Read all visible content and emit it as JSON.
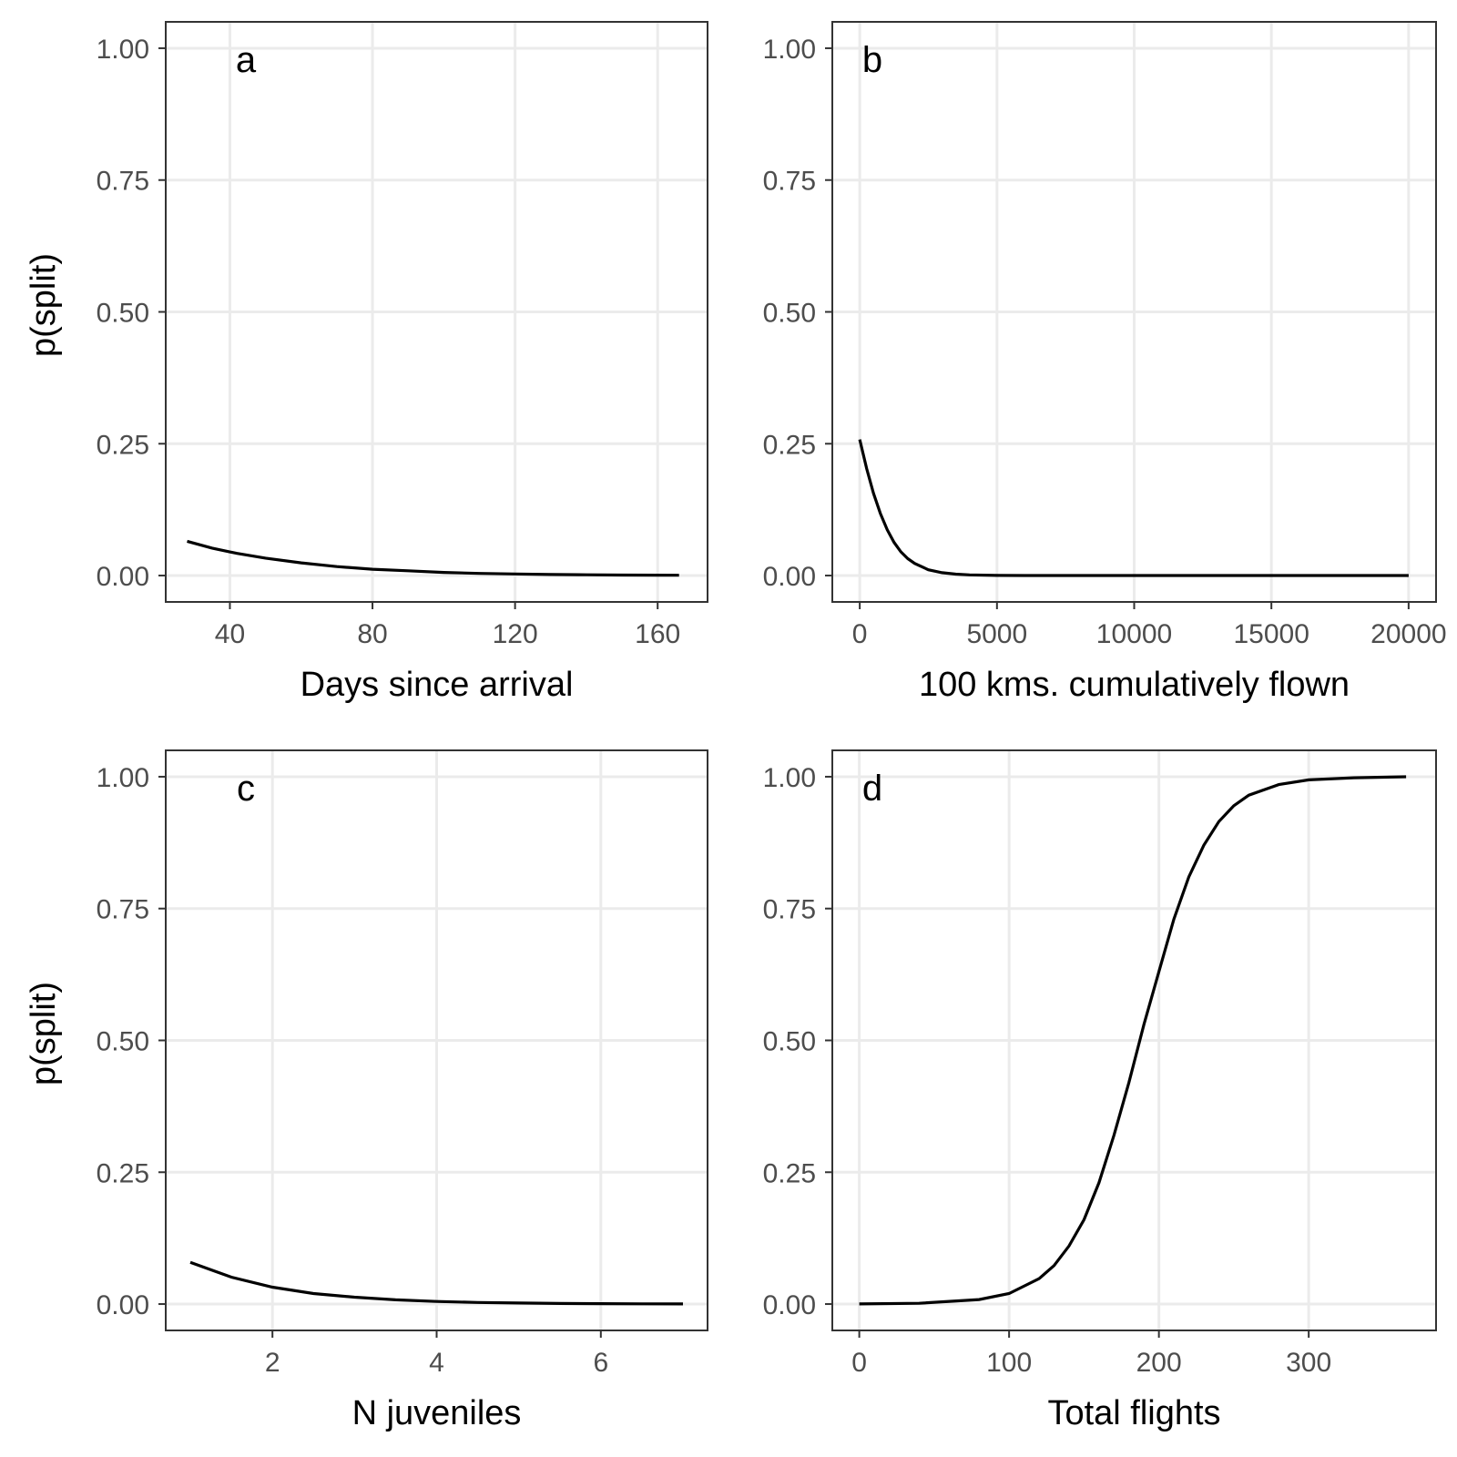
{
  "figure": {
    "ylabel_top": "p(split)",
    "ylabel_bottom": "p(split)"
  },
  "chart_data": [
    {
      "type": "line",
      "panel_label": "a",
      "xlabel": "Days since arrival",
      "ylabel": "p(split)",
      "xlim": [
        22,
        174
      ],
      "ylim": [
        -0.05,
        1.05
      ],
      "xticks": [
        40,
        80,
        120,
        160
      ],
      "xtick_labels": [
        "40",
        "80",
        "120",
        "160"
      ],
      "yticks": [
        0,
        0.25,
        0.5,
        0.75,
        1
      ],
      "ytick_labels": [
        "0.00",
        "0.25",
        "0.50",
        "0.75",
        "1.00"
      ],
      "grid": true,
      "series": [
        {
          "x": [
            28,
            35,
            42,
            50,
            60,
            70,
            80,
            90,
            100,
            110,
            120,
            130,
            140,
            150,
            160,
            166
          ],
          "y": [
            0.065,
            0.052,
            0.042,
            0.033,
            0.024,
            0.017,
            0.012,
            0.009,
            0.006,
            0.004,
            0.003,
            0.002,
            0.0015,
            0.001,
            0.0007,
            0.0006
          ]
        }
      ]
    },
    {
      "type": "line",
      "panel_label": "b",
      "xlabel": "100 kms. cumulatively flown",
      "ylabel": "p(split)",
      "xlim": [
        -1000,
        21000
      ],
      "ylim": [
        -0.05,
        1.05
      ],
      "xticks": [
        0,
        5000,
        10000,
        15000,
        20000
      ],
      "xtick_labels": [
        "0",
        "5000",
        "10000",
        "15000",
        "20000"
      ],
      "yticks": [
        0,
        0.25,
        0.5,
        0.75,
        1
      ],
      "ytick_labels": [
        "0.00",
        "0.25",
        "0.50",
        "0.75",
        "1.00"
      ],
      "grid": true,
      "series": [
        {
          "x": [
            0,
            250,
            500,
            750,
            1000,
            1250,
            1500,
            1750,
            2000,
            2500,
            3000,
            3500,
            4000,
            5000,
            6000,
            8000,
            10000,
            15000,
            20000
          ],
          "y": [
            0.258,
            0.203,
            0.156,
            0.118,
            0.087,
            0.063,
            0.045,
            0.032,
            0.023,
            0.011,
            0.0055,
            0.0027,
            0.0013,
            0.0003,
            0.0001,
            0,
            0,
            0,
            0
          ]
        }
      ]
    },
    {
      "type": "line",
      "panel_label": "c",
      "xlabel": "N juveniles",
      "ylabel": "p(split)",
      "xlim": [
        0.7,
        7.3
      ],
      "ylim": [
        -0.05,
        1.05
      ],
      "xticks": [
        2,
        4,
        6
      ],
      "xtick_labels": [
        "2",
        "4",
        "6"
      ],
      "yticks": [
        0,
        0.25,
        0.5,
        0.75,
        1
      ],
      "ytick_labels": [
        "0.00",
        "0.25",
        "0.50",
        "0.75",
        "1.00"
      ],
      "grid": true,
      "series": [
        {
          "x": [
            1,
            1.5,
            2,
            2.5,
            3,
            3.5,
            4,
            4.5,
            5,
            5.5,
            6,
            6.5,
            7
          ],
          "y": [
            0.079,
            0.051,
            0.032,
            0.02,
            0.013,
            0.008,
            0.005,
            0.003,
            0.002,
            0.0012,
            0.0008,
            0.0005,
            0.0003
          ]
        }
      ]
    },
    {
      "type": "line",
      "panel_label": "d",
      "xlabel": "Total flights",
      "ylabel": "p(split)",
      "xlim": [
        -18,
        385
      ],
      "ylim": [
        -0.05,
        1.05
      ],
      "xticks": [
        0,
        100,
        200,
        300
      ],
      "xtick_labels": [
        "0",
        "100",
        "200",
        "300"
      ],
      "yticks": [
        0,
        0.25,
        0.5,
        0.75,
        1
      ],
      "ytick_labels": [
        "0.00",
        "0.25",
        "0.50",
        "0.75",
        "1.00"
      ],
      "grid": true,
      "series": [
        {
          "x": [
            0,
            40,
            80,
            100,
            120,
            130,
            140,
            150,
            160,
            170,
            180,
            190,
            200,
            210,
            220,
            230,
            240,
            250,
            260,
            280,
            300,
            330,
            365
          ],
          "y": [
            0.0002,
            0.0015,
            0.0085,
            0.02,
            0.048,
            0.073,
            0.11,
            0.16,
            0.23,
            0.32,
            0.42,
            0.53,
            0.63,
            0.73,
            0.81,
            0.87,
            0.915,
            0.945,
            0.965,
            0.985,
            0.994,
            0.998,
            1.0
          ]
        }
      ]
    }
  ]
}
